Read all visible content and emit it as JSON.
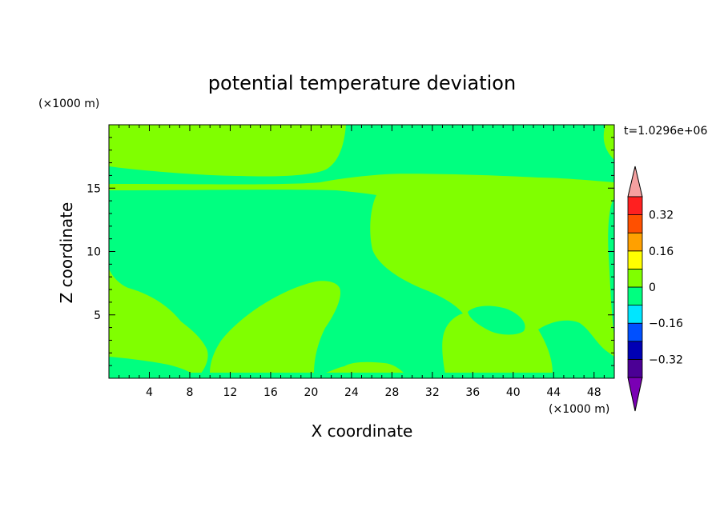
{
  "chart_data": {
    "type": "heatmap",
    "title": "potential temperature deviation",
    "xlabel": "X coordinate",
    "ylabel": "Z coordinate",
    "x_unit": "(×1000 m)",
    "z_unit": "(×1000 m)",
    "time_label": "t=1.0296e+06",
    "xlim": [
      0,
      50
    ],
    "ylim": [
      0,
      20
    ],
    "x_ticks": [
      4,
      8,
      12,
      16,
      20,
      24,
      28,
      32,
      36,
      40,
      44,
      48
    ],
    "y_ticks": [
      5,
      10,
      15
    ],
    "colorbar": {
      "levels": [
        -0.4,
        -0.32,
        -0.24,
        -0.16,
        -0.08,
        0,
        0.08,
        0.16,
        0.24,
        0.32,
        0.4
      ],
      "colors": [
        "#4b0095",
        "#0000b4",
        "#0050ff",
        "#00e6ff",
        "#00ff80",
        "#80ff00",
        "#ffff00",
        "#ffa000",
        "#ff5000",
        "#ff2020"
      ],
      "under_color": "#7a00b4",
      "over_color": "#f5a0a0",
      "tick_labels": [
        "0.32",
        "0.16",
        "0",
        "−0.16",
        "−0.32"
      ]
    },
    "background_band": "0 to 0.08",
    "regions_band": "-0.08 to 0"
  }
}
